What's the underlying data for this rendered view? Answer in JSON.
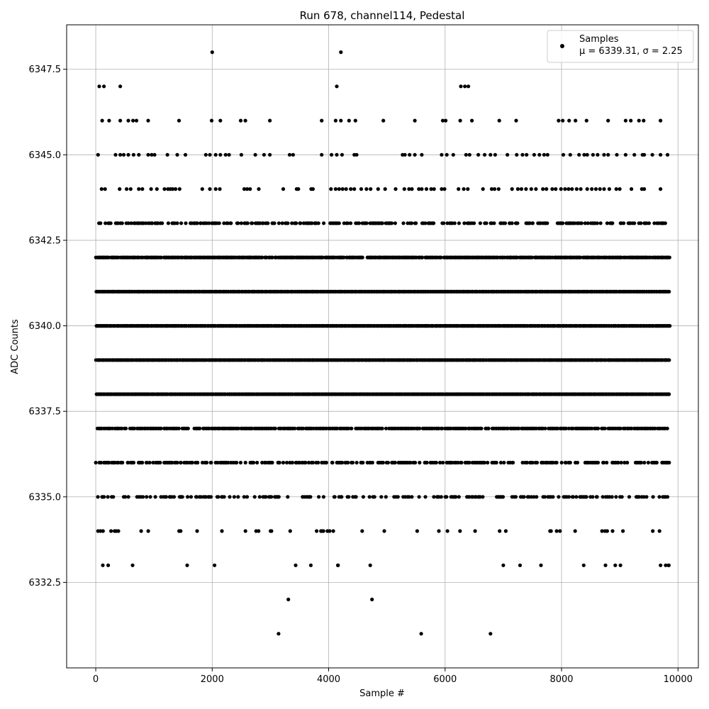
{
  "chart_data": {
    "type": "scatter",
    "title": "Run 678, channel114, Pedestal",
    "xlabel": "Sample #",
    "ylabel": "ADC Counts",
    "xlim": [
      -500,
      10350
    ],
    "ylim": [
      6330.0,
      6348.8
    ],
    "xticks": [
      0,
      2000,
      4000,
      6000,
      8000,
      10000
    ],
    "xtick_labels": [
      "0",
      "2000",
      "4000",
      "6000",
      "8000",
      "10000"
    ],
    "yticks": [
      6332.5,
      6335.0,
      6337.5,
      6340.0,
      6342.5,
      6345.0,
      6347.5
    ],
    "ytick_labels": [
      "6332.5",
      "6335.0",
      "6337.5",
      "6340.0",
      "6342.5",
      "6345.0",
      "6347.5"
    ],
    "grid": true,
    "legend_position": "top-right",
    "marker_color": "#000000",
    "grid_color": "#b0b0b0",
    "series": [
      {
        "name": "Samples",
        "stats_label": "μ = 6339.31, σ = 2.25",
        "n_samples": 9850,
        "levels": [
          {
            "y": 6348,
            "x": [
              2000,
              4210
            ]
          },
          {
            "y": 6347,
            "x": [
              60,
              140,
              420,
              4140,
              6270,
              6340,
              6400
            ]
          },
          {
            "y": 6346,
            "x": [
              110,
              230,
              420,
              560,
              640,
              700,
              900,
              1430,
              1990,
              2140,
              2490,
              2570,
              2990,
              3880,
              4120,
              4210,
              4350,
              4460,
              4940,
              5480,
              5960,
              6010,
              6260,
              6460,
              6930,
              7220,
              7950,
              8020,
              8130,
              8240,
              8430,
              8800,
              9100,
              9190,
              9330,
              9410,
              9700
            ]
          },
          {
            "y": 6345,
            "x": [
              40,
              340,
              420,
              480,
              560,
              650,
              740,
              900,
              960,
              1010,
              1230,
              1400,
              1540,
              1890,
              1960,
              2060,
              2140,
              2230,
              2290,
              2500,
              2740,
              2890,
              2990,
              3330,
              3390,
              3880,
              4050,
              4140,
              4230,
              4440,
              4480,
              5270,
              5310,
              5390,
              5480,
              5600,
              5940,
              6030,
              6140,
              6360,
              6420,
              6570,
              6680,
              6780,
              6860,
              7070,
              7230,
              7330,
              7400,
              7530,
              7620,
              7700,
              7760,
              8030,
              8150,
              8300,
              8390,
              8440,
              8540,
              8620,
              8730,
              8800,
              8950,
              9100,
              9250,
              9390,
              9420,
              9560,
              9700,
              9820
            ]
          },
          {
            "y": 6344,
            "x": [
              100,
              160,
              410,
              530,
              600,
              740,
              800,
              950,
              1050,
              1180,
              1240,
              1280,
              1320,
              1370,
              1440,
              1830,
              1960,
              2060,
              2130,
              2550,
              2600,
              2650,
              2800,
              3220,
              3450,
              3480,
              3700,
              3730,
              4040,
              4120,
              4180,
              4240,
              4300,
              4380,
              4440,
              4560,
              4650,
              4720,
              4850,
              4970,
              5150,
              5300,
              5380,
              5430,
              5550,
              5600,
              5680,
              5760,
              5810,
              5940,
              5990,
              6230,
              6320,
              6390,
              6650,
              6800,
              6850,
              6920,
              7150,
              7250,
              7310,
              7390,
              7480,
              7560,
              7680,
              7740,
              7840,
              7900,
              7990,
              8060,
              8120,
              8180,
              8260,
              8330,
              8440,
              8520,
              8590,
              8660,
              8730,
              8820,
              8940,
              9000,
              9200,
              9380,
              9420,
              9700
            ]
          },
          {
            "y": 6331,
            "x": [
              3140,
              5590,
              6780
            ]
          }
        ],
        "dense_levels": [
          6342,
          6341,
          6340,
          6339,
          6338,
          6337,
          6336,
          6335,
          6334,
          6333,
          6332,
          6343
        ]
      }
    ]
  }
}
